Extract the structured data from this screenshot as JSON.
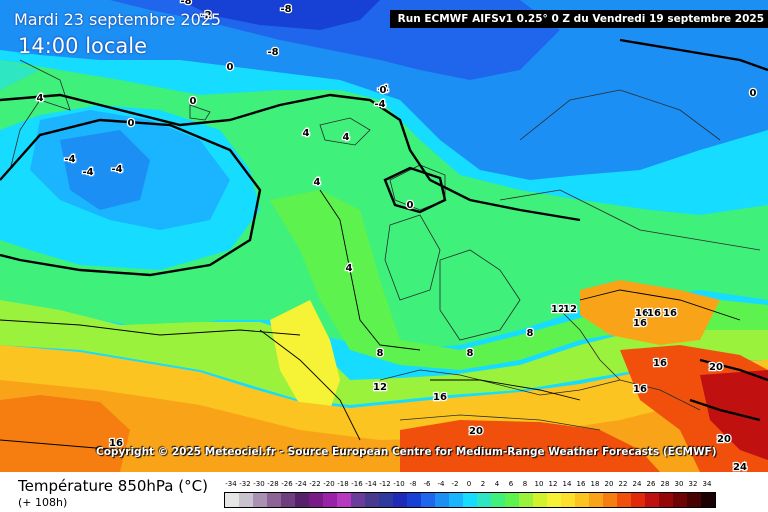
{
  "header": {
    "date": "Mardi 23 septembre 2025",
    "time": "14:00 locale",
    "run": "Run ECMWF AIFSv1 0.25° 0 Z du Vendredi 19 septembre 2025"
  },
  "copyright": "Copyright © 2025 Meteociel.fr - Source European Centre for Medium-Range Weather Forecasts (ECMWF)",
  "legend": {
    "variable": "Température 850hPa (°C)",
    "lead": "(+ 108h)",
    "scale": [
      {
        "label": "-34",
        "color": "#e6e6e6"
      },
      {
        "label": "-32",
        "color": "#c9c2cf"
      },
      {
        "label": "-30",
        "color": "#a991b4"
      },
      {
        "label": "-28",
        "color": "#8c6496"
      },
      {
        "label": "-26",
        "color": "#6e3e7e"
      },
      {
        "label": "-24",
        "color": "#581f6a"
      },
      {
        "label": "-22",
        "color": "#7a1a86"
      },
      {
        "label": "-20",
        "color": "#9a22a6"
      },
      {
        "label": "-18",
        "color": "#b63ac0"
      },
      {
        "label": "-16",
        "color": "#6b3d9a"
      },
      {
        "label": "-14",
        "color": "#4a3a8f"
      },
      {
        "label": "-12",
        "color": "#2f3a9e"
      },
      {
        "label": "-10",
        "color": "#1e2ab8"
      },
      {
        "label": "-8",
        "color": "#1740d4"
      },
      {
        "label": "-6",
        "color": "#1f66ec"
      },
      {
        "label": "-4",
        "color": "#1c8ff5"
      },
      {
        "label": "-2",
        "color": "#1ab4ff"
      },
      {
        "label": "0",
        "color": "#16dcff"
      },
      {
        "label": "2",
        "color": "#2ee6c2"
      },
      {
        "label": "4",
        "color": "#3ff07a"
      },
      {
        "label": "6",
        "color": "#5ef24e"
      },
      {
        "label": "8",
        "color": "#9af23c"
      },
      {
        "label": "10",
        "color": "#d2f22e"
      },
      {
        "label": "12",
        "color": "#f6f236"
      },
      {
        "label": "14",
        "color": "#fde02c"
      },
      {
        "label": "16",
        "color": "#fcc420"
      },
      {
        "label": "18",
        "color": "#f9a418"
      },
      {
        "label": "20",
        "color": "#f67e10"
      },
      {
        "label": "22",
        "color": "#f0500c"
      },
      {
        "label": "24",
        "color": "#e02a0a"
      },
      {
        "label": "26",
        "color": "#c01010"
      },
      {
        "label": "28",
        "color": "#960808"
      },
      {
        "label": "30",
        "color": "#6e0404"
      },
      {
        "label": "32",
        "color": "#480202"
      },
      {
        "label": "34",
        "color": "#1a0000"
      }
    ]
  },
  "map": {
    "contour_labels": [
      "-8",
      "-8",
      "-8",
      "-2",
      "-4",
      "-4",
      "-4",
      "-4",
      "-4",
      "0",
      "0",
      "0",
      "0",
      "0",
      "0",
      "4",
      "4",
      "4",
      "4",
      "4",
      "8",
      "8",
      "8",
      "12",
      "12",
      "12",
      "16",
      "16",
      "16",
      "16",
      "16",
      "16",
      "16",
      "20",
      "20",
      "20",
      "24",
      "16"
    ]
  }
}
